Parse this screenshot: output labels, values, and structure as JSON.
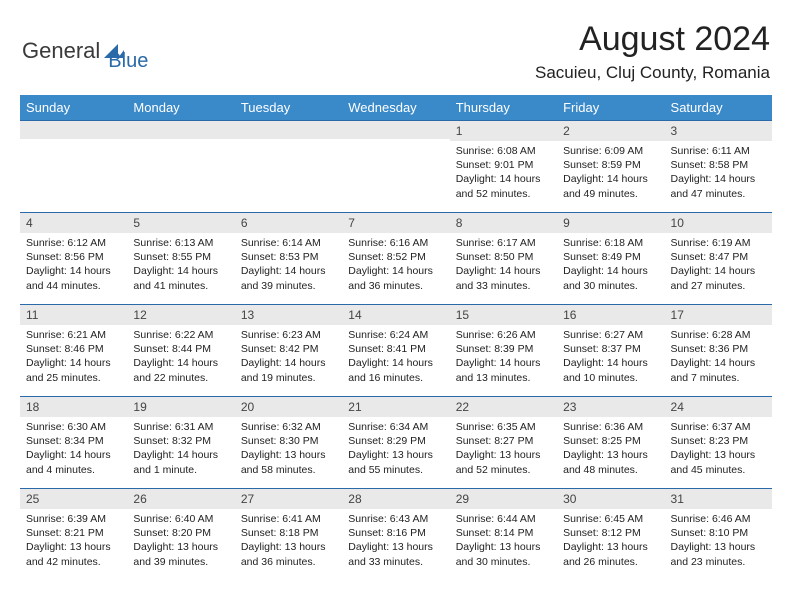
{
  "logo": {
    "part1": "General",
    "part2": "Blue"
  },
  "title": "August 2024",
  "location": "Sacuieu, Cluj County, Romania",
  "colors": {
    "header_bg": "#3a89c9",
    "header_text": "#ffffff",
    "border": "#2b6aa8",
    "daynum_bg": "#e9e9e9",
    "logo_gray": "#3a3a3a",
    "logo_blue": "#2b6aa8"
  },
  "daynames": [
    "Sunday",
    "Monday",
    "Tuesday",
    "Wednesday",
    "Thursday",
    "Friday",
    "Saturday"
  ],
  "weeks": [
    [
      {
        "n": "",
        "sr": "",
        "ss": "",
        "dl": ""
      },
      {
        "n": "",
        "sr": "",
        "ss": "",
        "dl": ""
      },
      {
        "n": "",
        "sr": "",
        "ss": "",
        "dl": ""
      },
      {
        "n": "",
        "sr": "",
        "ss": "",
        "dl": ""
      },
      {
        "n": "1",
        "sr": "Sunrise: 6:08 AM",
        "ss": "Sunset: 9:01 PM",
        "dl": "Daylight: 14 hours and 52 minutes."
      },
      {
        "n": "2",
        "sr": "Sunrise: 6:09 AM",
        "ss": "Sunset: 8:59 PM",
        "dl": "Daylight: 14 hours and 49 minutes."
      },
      {
        "n": "3",
        "sr": "Sunrise: 6:11 AM",
        "ss": "Sunset: 8:58 PM",
        "dl": "Daylight: 14 hours and 47 minutes."
      }
    ],
    [
      {
        "n": "4",
        "sr": "Sunrise: 6:12 AM",
        "ss": "Sunset: 8:56 PM",
        "dl": "Daylight: 14 hours and 44 minutes."
      },
      {
        "n": "5",
        "sr": "Sunrise: 6:13 AM",
        "ss": "Sunset: 8:55 PM",
        "dl": "Daylight: 14 hours and 41 minutes."
      },
      {
        "n": "6",
        "sr": "Sunrise: 6:14 AM",
        "ss": "Sunset: 8:53 PM",
        "dl": "Daylight: 14 hours and 39 minutes."
      },
      {
        "n": "7",
        "sr": "Sunrise: 6:16 AM",
        "ss": "Sunset: 8:52 PM",
        "dl": "Daylight: 14 hours and 36 minutes."
      },
      {
        "n": "8",
        "sr": "Sunrise: 6:17 AM",
        "ss": "Sunset: 8:50 PM",
        "dl": "Daylight: 14 hours and 33 minutes."
      },
      {
        "n": "9",
        "sr": "Sunrise: 6:18 AM",
        "ss": "Sunset: 8:49 PM",
        "dl": "Daylight: 14 hours and 30 minutes."
      },
      {
        "n": "10",
        "sr": "Sunrise: 6:19 AM",
        "ss": "Sunset: 8:47 PM",
        "dl": "Daylight: 14 hours and 27 minutes."
      }
    ],
    [
      {
        "n": "11",
        "sr": "Sunrise: 6:21 AM",
        "ss": "Sunset: 8:46 PM",
        "dl": "Daylight: 14 hours and 25 minutes."
      },
      {
        "n": "12",
        "sr": "Sunrise: 6:22 AM",
        "ss": "Sunset: 8:44 PM",
        "dl": "Daylight: 14 hours and 22 minutes."
      },
      {
        "n": "13",
        "sr": "Sunrise: 6:23 AM",
        "ss": "Sunset: 8:42 PM",
        "dl": "Daylight: 14 hours and 19 minutes."
      },
      {
        "n": "14",
        "sr": "Sunrise: 6:24 AM",
        "ss": "Sunset: 8:41 PM",
        "dl": "Daylight: 14 hours and 16 minutes."
      },
      {
        "n": "15",
        "sr": "Sunrise: 6:26 AM",
        "ss": "Sunset: 8:39 PM",
        "dl": "Daylight: 14 hours and 13 minutes."
      },
      {
        "n": "16",
        "sr": "Sunrise: 6:27 AM",
        "ss": "Sunset: 8:37 PM",
        "dl": "Daylight: 14 hours and 10 minutes."
      },
      {
        "n": "17",
        "sr": "Sunrise: 6:28 AM",
        "ss": "Sunset: 8:36 PM",
        "dl": "Daylight: 14 hours and 7 minutes."
      }
    ],
    [
      {
        "n": "18",
        "sr": "Sunrise: 6:30 AM",
        "ss": "Sunset: 8:34 PM",
        "dl": "Daylight: 14 hours and 4 minutes."
      },
      {
        "n": "19",
        "sr": "Sunrise: 6:31 AM",
        "ss": "Sunset: 8:32 PM",
        "dl": "Daylight: 14 hours and 1 minute."
      },
      {
        "n": "20",
        "sr": "Sunrise: 6:32 AM",
        "ss": "Sunset: 8:30 PM",
        "dl": "Daylight: 13 hours and 58 minutes."
      },
      {
        "n": "21",
        "sr": "Sunrise: 6:34 AM",
        "ss": "Sunset: 8:29 PM",
        "dl": "Daylight: 13 hours and 55 minutes."
      },
      {
        "n": "22",
        "sr": "Sunrise: 6:35 AM",
        "ss": "Sunset: 8:27 PM",
        "dl": "Daylight: 13 hours and 52 minutes."
      },
      {
        "n": "23",
        "sr": "Sunrise: 6:36 AM",
        "ss": "Sunset: 8:25 PM",
        "dl": "Daylight: 13 hours and 48 minutes."
      },
      {
        "n": "24",
        "sr": "Sunrise: 6:37 AM",
        "ss": "Sunset: 8:23 PM",
        "dl": "Daylight: 13 hours and 45 minutes."
      }
    ],
    [
      {
        "n": "25",
        "sr": "Sunrise: 6:39 AM",
        "ss": "Sunset: 8:21 PM",
        "dl": "Daylight: 13 hours and 42 minutes."
      },
      {
        "n": "26",
        "sr": "Sunrise: 6:40 AM",
        "ss": "Sunset: 8:20 PM",
        "dl": "Daylight: 13 hours and 39 minutes."
      },
      {
        "n": "27",
        "sr": "Sunrise: 6:41 AM",
        "ss": "Sunset: 8:18 PM",
        "dl": "Daylight: 13 hours and 36 minutes."
      },
      {
        "n": "28",
        "sr": "Sunrise: 6:43 AM",
        "ss": "Sunset: 8:16 PM",
        "dl": "Daylight: 13 hours and 33 minutes."
      },
      {
        "n": "29",
        "sr": "Sunrise: 6:44 AM",
        "ss": "Sunset: 8:14 PM",
        "dl": "Daylight: 13 hours and 30 minutes."
      },
      {
        "n": "30",
        "sr": "Sunrise: 6:45 AM",
        "ss": "Sunset: 8:12 PM",
        "dl": "Daylight: 13 hours and 26 minutes."
      },
      {
        "n": "31",
        "sr": "Sunrise: 6:46 AM",
        "ss": "Sunset: 8:10 PM",
        "dl": "Daylight: 13 hours and 23 minutes."
      }
    ]
  ]
}
